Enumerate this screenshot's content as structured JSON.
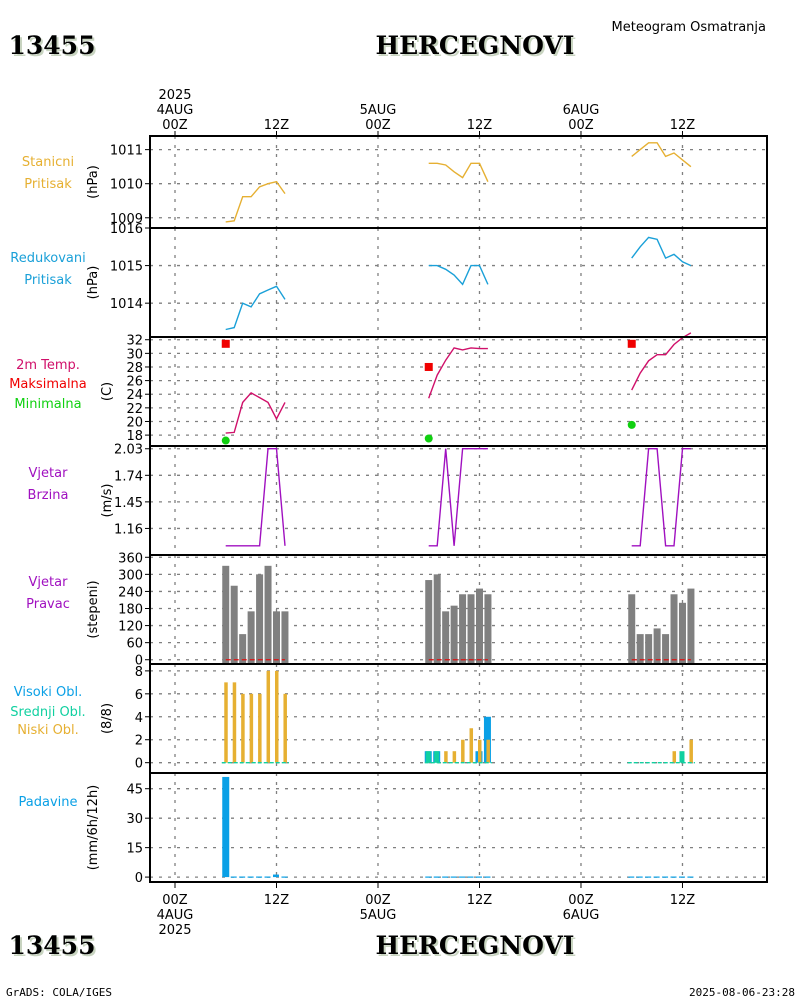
{
  "header": {
    "station_id": "13455",
    "station_name": "HERCEGNOVI",
    "subtitle": "Meteogram Osmatranja"
  },
  "footer": {
    "station_id": "13455",
    "station_name": "HERCEGNOVI",
    "credit": "GrADS: COLA/IGES",
    "timestamp": "2025-08-06-23:28"
  },
  "colors": {
    "station_pressure": "#e6b032",
    "reduced_pressure": "#1aa0d8",
    "temperature": "#d0106a",
    "temp_max": "#f00000",
    "temp_min": "#10d010",
    "wind": "#a010c0",
    "wind_dir_bar": "#808080",
    "wind_dir_zero": "#e01010",
    "cloud_high": "#0aa0e6",
    "cloud_mid": "#10d0a0",
    "cloud_low": "#e6b032",
    "precip": "#0aa0e6",
    "grid": "#808080"
  },
  "top_axis": [
    {
      "hour": 0,
      "lines": [
        "2025",
        "4AUG",
        "00Z"
      ]
    },
    {
      "hour": 12,
      "lines": [
        "12Z"
      ]
    },
    {
      "hour": 24,
      "lines": [
        "5AUG",
        "00Z"
      ]
    },
    {
      "hour": 36,
      "lines": [
        "12Z"
      ]
    },
    {
      "hour": 48,
      "lines": [
        "6AUG",
        "00Z"
      ]
    },
    {
      "hour": 60,
      "lines": [
        "12Z"
      ]
    }
  ],
  "bottom_axis": [
    {
      "hour": 0,
      "lines": [
        "00Z",
        "4AUG",
        "2025"
      ]
    },
    {
      "hour": 12,
      "lines": [
        "12Z"
      ]
    },
    {
      "hour": 24,
      "lines": [
        "00Z",
        "5AUG"
      ]
    },
    {
      "hour": 36,
      "lines": [
        "12Z"
      ]
    },
    {
      "hour": 48,
      "lines": [
        "00Z",
        "6AUG"
      ]
    },
    {
      "hour": 60,
      "lines": [
        "12Z"
      ]
    }
  ],
  "chart_data": [
    {
      "type": "line",
      "id": "station_pressure",
      "title": [
        "Stanicni",
        "Pritisak"
      ],
      "ylabel": "(hPa)",
      "ylim": [
        1008.7,
        1011.4
      ],
      "yticks": [
        1009,
        1010,
        1011
      ],
      "x_unit": "hours since 2025-08-04 00Z",
      "series": [
        {
          "name": "Stanicni Pritisak",
          "segments": [
            {
              "x": [
                6,
                7,
                8,
                9,
                10,
                11,
                12,
                13
              ],
              "y": [
                1008.88,
                1008.91,
                1009.62,
                1009.62,
                1009.91,
                1010.0,
                1010.06,
                1009.71
              ]
            },
            {
              "x": [
                30,
                31,
                32,
                33,
                34,
                35,
                36,
                37
              ],
              "y": [
                1010.6,
                1010.6,
                1010.55,
                1010.35,
                1010.18,
                1010.6,
                1010.6,
                1010.06
              ]
            },
            {
              "x": [
                54,
                55,
                56,
                57,
                58,
                59,
                60,
                61
              ],
              "y": [
                1010.8,
                1011.0,
                1011.2,
                1011.2,
                1010.8,
                1010.9,
                1010.7,
                1010.5
              ]
            }
          ]
        }
      ]
    },
    {
      "type": "line",
      "id": "reduced_pressure",
      "title": [
        "Redukovani",
        "Pritisak"
      ],
      "ylabel": "(hPa)",
      "ylim": [
        1013.1,
        1016.0
      ],
      "yticks": [
        1014,
        1015,
        1016
      ],
      "series": [
        {
          "name": "Redukovani Pritisak",
          "segments": [
            {
              "x": [
                6,
                7,
                8,
                9,
                10,
                11,
                12,
                13
              ],
              "y": [
                1013.3,
                1013.35,
                1014.0,
                1013.9,
                1014.25,
                1014.35,
                1014.45,
                1014.1
              ]
            },
            {
              "x": [
                30,
                31,
                32,
                33,
                34,
                35,
                36,
                37
              ],
              "y": [
                1015.0,
                1015.0,
                1014.9,
                1014.75,
                1014.5,
                1015.0,
                1015.0,
                1014.5
              ]
            },
            {
              "x": [
                54,
                55,
                56,
                57,
                58,
                59,
                60,
                61
              ],
              "y": [
                1015.2,
                1015.5,
                1015.75,
                1015.7,
                1015.2,
                1015.3,
                1015.1,
                1015.0
              ]
            }
          ]
        }
      ]
    },
    {
      "type": "line",
      "id": "temperature",
      "title": [
        "2m Temp.",
        "Maksimalna",
        "Minimalna"
      ],
      "ylabel": "(C)",
      "ylim": [
        16.4,
        32.4
      ],
      "yticks": [
        18,
        20,
        22,
        24,
        26,
        28,
        30,
        32
      ],
      "series": [
        {
          "name": "2m Temp.",
          "segments": [
            {
              "x": [
                6,
                7,
                8,
                9,
                10,
                11,
                12,
                13
              ],
              "y": [
                18.3,
                18.4,
                22.8,
                24.2,
                23.5,
                22.8,
                20.4,
                22.8
              ]
            },
            {
              "x": [
                30,
                31,
                32,
                33,
                34,
                35,
                36,
                37
              ],
              "y": [
                23.4,
                26.8,
                29.0,
                30.8,
                30.5,
                30.8,
                30.7,
                30.7
              ]
            },
            {
              "x": [
                54,
                55,
                56,
                57,
                58,
                59,
                60,
                61
              ],
              "y": [
                24.6,
                27.1,
                28.9,
                29.8,
                29.8,
                31.3,
                32.3,
                33.0
              ]
            }
          ]
        }
      ],
      "max_points": {
        "x": [
          6,
          30,
          54
        ],
        "y": [
          31.4,
          28.0,
          31.4
        ]
      },
      "min_points": {
        "x": [
          6,
          30,
          54
        ],
        "y": [
          17.2,
          17.5,
          19.5
        ]
      }
    },
    {
      "type": "line",
      "id": "wind_speed",
      "title": [
        "Vjetar",
        "Brzina"
      ],
      "ylabel": "(m/s)",
      "ylim": [
        0.87,
        2.06
      ],
      "yticks": [
        1.16,
        1.45,
        1.74,
        2.03
      ],
      "series": [
        {
          "name": "Vjetar Brzina",
          "step": true,
          "segments": [
            {
              "x": [
                6,
                7,
                8,
                9,
                10,
                11,
                12,
                13
              ],
              "y": [
                0.97,
                0.97,
                0.97,
                0.97,
                0.97,
                2.03,
                2.03,
                0.97
              ]
            },
            {
              "x": [
                30,
                31,
                32,
                33,
                34,
                35,
                36,
                37
              ],
              "y": [
                0.97,
                0.97,
                2.03,
                0.97,
                2.03,
                2.03,
                2.03,
                2.03
              ]
            },
            {
              "x": [
                54,
                55,
                56,
                57,
                58,
                59,
                60,
                61
              ],
              "y": [
                0.97,
                0.97,
                2.03,
                2.03,
                0.97,
                0.97,
                2.03,
                2.03
              ]
            }
          ]
        }
      ]
    },
    {
      "type": "bar",
      "id": "wind_direction",
      "title": [
        "Vjetar",
        "Pravac"
      ],
      "ylabel": "(stepeni)",
      "ylim": [
        -15,
        368
      ],
      "yticks": [
        0,
        60,
        120,
        180,
        240,
        300,
        360
      ],
      "series": [
        {
          "name": "Vjetar Pravac",
          "x": [
            6,
            7,
            8,
            9,
            10,
            11,
            12,
            13,
            30,
            31,
            32,
            33,
            34,
            35,
            36,
            37,
            54,
            55,
            56,
            57,
            58,
            59,
            60,
            61
          ],
          "y": [
            330,
            260,
            90,
            170,
            300,
            330,
            170,
            170,
            280,
            300,
            170,
            190,
            230,
            230,
            250,
            230,
            230,
            90,
            90,
            110,
            90,
            230,
            200,
            250
          ]
        }
      ]
    },
    {
      "type": "bar",
      "id": "clouds",
      "title": [
        "Visoki Obl.",
        "Srednji Obl.",
        "Niski Obl."
      ],
      "ylabel": "(8/8)",
      "ylim": [
        -0.9,
        8.6
      ],
      "yticks": [
        0,
        2,
        4,
        6,
        8
      ],
      "series": [
        {
          "name": "Visoki Obl.",
          "x": [
            6,
            7,
            8,
            9,
            10,
            11,
            12,
            13,
            30,
            31,
            32,
            33,
            34,
            35,
            36,
            37,
            54,
            55,
            56,
            57,
            58,
            59,
            60,
            61
          ],
          "y": [
            0,
            0,
            0,
            0,
            0,
            0,
            0,
            0,
            1,
            1,
            0,
            0,
            0,
            0,
            1,
            4,
            0,
            0,
            0,
            0,
            0,
            0,
            0,
            0
          ]
        },
        {
          "name": "Srednji Obl.",
          "x": [
            6,
            7,
            8,
            9,
            10,
            11,
            12,
            13,
            30,
            31,
            32,
            33,
            34,
            35,
            36,
            37,
            54,
            55,
            56,
            57,
            58,
            59,
            60,
            61
          ],
          "y": [
            0,
            0,
            0,
            0,
            0,
            0,
            0,
            0,
            1,
            1,
            0,
            0,
            0,
            0,
            0,
            0,
            0,
            0,
            0,
            0,
            0,
            0,
            1,
            0
          ]
        },
        {
          "name": "Niski Obl.",
          "x": [
            6,
            7,
            8,
            9,
            10,
            11,
            12,
            13,
            30,
            31,
            32,
            33,
            34,
            35,
            36,
            37,
            54,
            55,
            56,
            57,
            58,
            59,
            60,
            61
          ],
          "y": [
            7,
            7,
            6,
            6,
            6,
            8,
            8,
            6,
            0,
            0,
            1,
            1,
            2,
            3,
            2,
            2,
            0,
            0,
            0,
            0,
            0,
            1,
            0,
            2
          ]
        }
      ]
    },
    {
      "type": "bar",
      "id": "precipitation",
      "title": [
        "Padavine"
      ],
      "ylabel": "(mm/6h/12h)",
      "ylim": [
        -2.5,
        53
      ],
      "yticks": [
        0,
        15,
        30,
        45
      ],
      "series": [
        {
          "name": "Padavine",
          "x": [
            6,
            7,
            8,
            9,
            10,
            11,
            12,
            13,
            30,
            31,
            32,
            33,
            34,
            35,
            36,
            37,
            54,
            55,
            56,
            57,
            58,
            59,
            60,
            61
          ],
          "y": [
            51,
            0.3,
            0.3,
            0.3,
            0.3,
            0.3,
            1.3,
            0.3,
            0.3,
            0.3,
            0.3,
            0.3,
            0.3,
            0.3,
            0.3,
            0.3,
            0.3,
            0.3,
            0.3,
            0.3,
            0.3,
            0.3,
            0.3,
            0.3
          ]
        }
      ]
    }
  ]
}
